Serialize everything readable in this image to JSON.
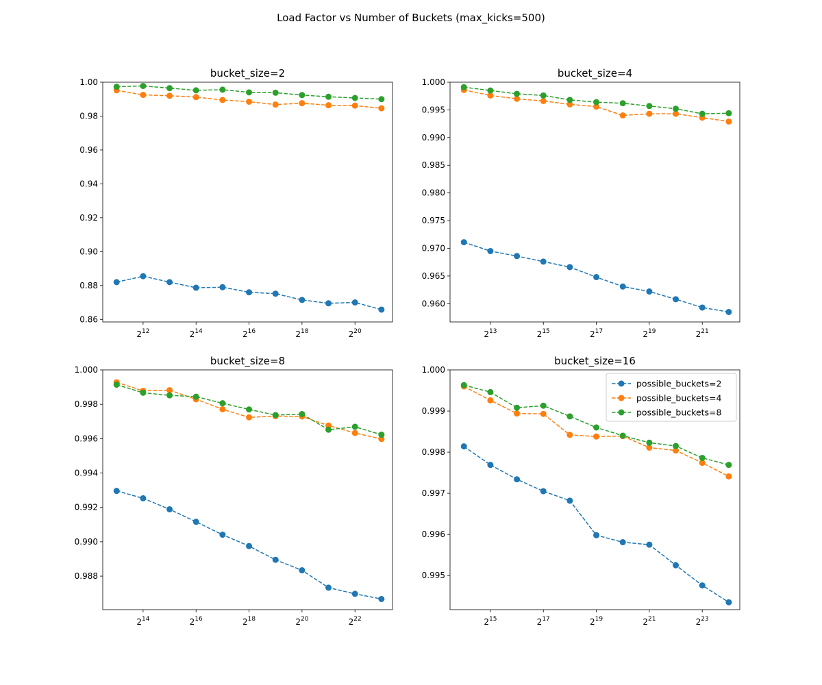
{
  "suptitle": "Load Factor vs Number of Buckets (max_kicks=500)",
  "colors": [
    "#1f77b4",
    "#ff7f0e",
    "#2ca02c"
  ],
  "legend_placement": "upper-right of bucket_size=16 panel",
  "chart_data": [
    {
      "type": "line",
      "title": "bucket_size=2",
      "xscale": "log2",
      "x": [
        2048,
        4096,
        8192,
        16384,
        32768,
        65536,
        131072,
        262144,
        524288,
        1048576,
        2097152
      ],
      "xticks": [
        4096,
        16384,
        65536,
        262144,
        1048576
      ],
      "xlim": [
        1425,
        2800000
      ],
      "ylim": [
        0.8585,
        1.0
      ],
      "yticks": [
        0.86,
        0.88,
        0.9,
        0.92,
        0.94,
        0.96,
        0.98,
        1.0
      ],
      "yformat": 2,
      "series": [
        {
          "name": "possible_buckets=2",
          "values": [
            0.882,
            0.8855,
            0.882,
            0.8787,
            0.879,
            0.876,
            0.8752,
            0.8715,
            0.8695,
            0.87,
            0.8658
          ]
        },
        {
          "name": "possible_buckets=4",
          "values": [
            0.9952,
            0.9925,
            0.992,
            0.9912,
            0.9895,
            0.9885,
            0.9868,
            0.9876,
            0.9864,
            0.9862,
            0.9846
          ]
        },
        {
          "name": "possible_buckets=8",
          "values": [
            0.9973,
            0.9978,
            0.9965,
            0.9952,
            0.9956,
            0.994,
            0.9938,
            0.9924,
            0.9914,
            0.9907,
            0.99
          ]
        }
      ],
      "legend": false
    },
    {
      "type": "line",
      "title": "bucket_size=4",
      "xscale": "log2",
      "x": [
        4096,
        8192,
        16384,
        32768,
        65536,
        131072,
        262144,
        524288,
        1048576,
        2097152,
        4194304
      ],
      "xticks": [
        8192,
        32768,
        131072,
        524288,
        2097152
      ],
      "xlim": [
        2850,
        5600000
      ],
      "ylim": [
        0.9567,
        1.0
      ],
      "yticks": [
        0.96,
        0.965,
        0.97,
        0.975,
        0.98,
        0.985,
        0.99,
        0.995,
        1.0
      ],
      "yformat": 3,
      "series": [
        {
          "name": "possible_buckets=2",
          "values": [
            0.9711,
            0.9695,
            0.9686,
            0.9676,
            0.9666,
            0.9648,
            0.9631,
            0.9622,
            0.9608,
            0.9593,
            0.9585
          ]
        },
        {
          "name": "possible_buckets=4",
          "values": [
            0.9986,
            0.9976,
            0.997,
            0.9966,
            0.996,
            0.9956,
            0.994,
            0.9943,
            0.9943,
            0.9936,
            0.9929
          ]
        },
        {
          "name": "possible_buckets=8",
          "values": [
            0.9991,
            0.9985,
            0.9979,
            0.9976,
            0.9968,
            0.9964,
            0.9962,
            0.9957,
            0.9952,
            0.9943,
            0.9944
          ]
        }
      ],
      "legend": false
    },
    {
      "type": "line",
      "title": "bucket_size=8",
      "xscale": "log2",
      "x": [
        8192,
        16384,
        32768,
        65536,
        131072,
        262144,
        524288,
        1048576,
        2097152,
        4194304,
        8388608
      ],
      "xticks": [
        16384,
        65536,
        262144,
        1048576,
        4194304
      ],
      "xlim": [
        5700,
        11200000
      ],
      "ylim": [
        0.98605,
        1.0
      ],
      "yticks": [
        0.988,
        0.99,
        0.992,
        0.994,
        0.996,
        0.998,
        1.0
      ],
      "yformat": 3,
      "series": [
        {
          "name": "possible_buckets=2",
          "values": [
            0.99296,
            0.99253,
            0.99189,
            0.99116,
            0.99041,
            0.98975,
            0.98895,
            0.98834,
            0.98733,
            0.98697,
            0.98667
          ]
        },
        {
          "name": "possible_buckets=4",
          "values": [
            0.99928,
            0.99878,
            0.99882,
            0.99829,
            0.99771,
            0.99724,
            0.99731,
            0.99729,
            0.99676,
            0.99633,
            0.99598
          ]
        },
        {
          "name": "possible_buckets=8",
          "values": [
            0.99914,
            0.99867,
            0.99852,
            0.99844,
            0.99806,
            0.9977,
            0.99737,
            0.99743,
            0.99652,
            0.99669,
            0.99623
          ]
        }
      ],
      "legend": false
    },
    {
      "type": "line",
      "title": "bucket_size=16",
      "xscale": "log2",
      "x": [
        16384,
        32768,
        65536,
        131072,
        262144,
        524288,
        1048576,
        2097152,
        4194304,
        8388608,
        16777216
      ],
      "xticks": [
        32768,
        131072,
        524288,
        2097152,
        8388608
      ],
      "xlim": [
        11400,
        22400000
      ],
      "ylim": [
        0.99417,
        1.0
      ],
      "yticks": [
        0.995,
        0.996,
        0.997,
        0.998,
        0.999,
        1.0
      ],
      "yformat": 3,
      "series": [
        {
          "name": "possible_buckets=2",
          "values": [
            0.99814,
            0.99769,
            0.99734,
            0.99705,
            0.99682,
            0.99598,
            0.99581,
            0.99575,
            0.99525,
            0.99476,
            0.99435
          ]
        },
        {
          "name": "possible_buckets=4",
          "values": [
            0.9996,
            0.99926,
            0.99894,
            0.99893,
            0.99842,
            0.99838,
            0.99839,
            0.99811,
            0.99804,
            0.99774,
            0.99741
          ]
        },
        {
          "name": "possible_buckets=8",
          "values": [
            0.99963,
            0.99946,
            0.99908,
            0.99913,
            0.99887,
            0.9986,
            0.9984,
            0.99823,
            0.99815,
            0.99786,
            0.99769
          ]
        }
      ],
      "legend": true
    }
  ]
}
